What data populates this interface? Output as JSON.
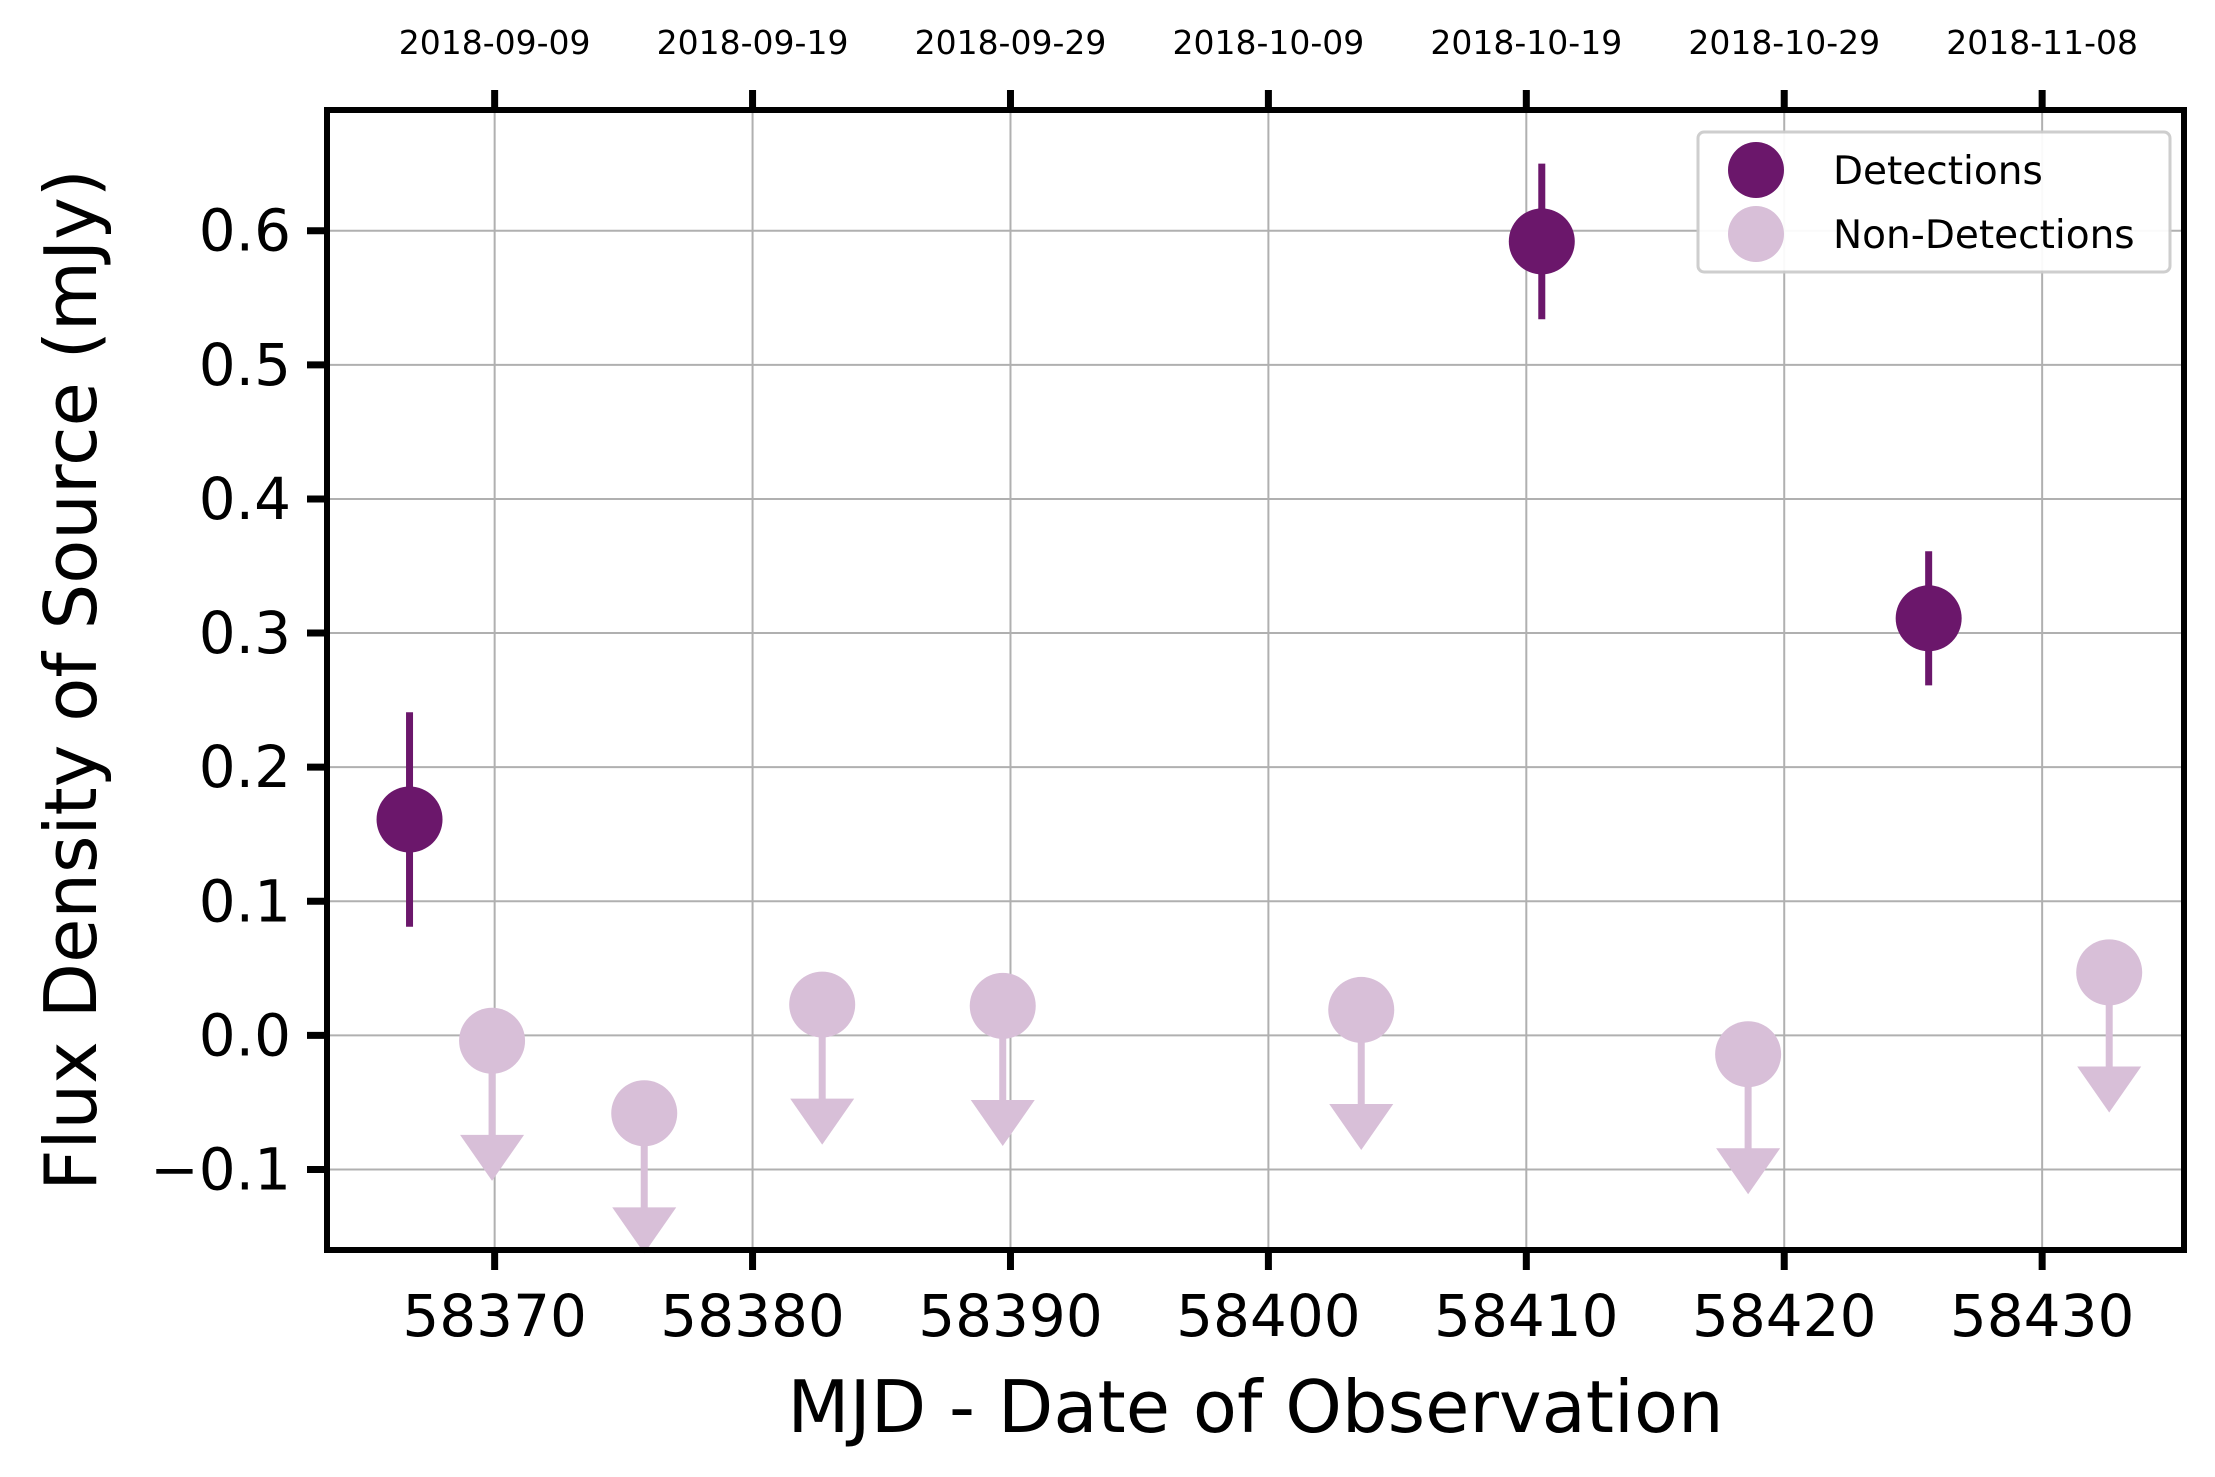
{
  "chart_data": {
    "type": "scatter",
    "xlabel": "MJD - Date of Observation",
    "ylabel": "Flux Density of Source (mJy)",
    "xlim": [
      58363.5,
      58435.5
    ],
    "ylim": [
      -0.16,
      0.69
    ],
    "x_ticks": [
      58370,
      58380,
      58390,
      58400,
      58410,
      58420,
      58430
    ],
    "x_tick_labels": [
      "58370",
      "58380",
      "58390",
      "58400",
      "58410",
      "58420",
      "58430"
    ],
    "y_ticks": [
      -0.1,
      0.0,
      0.1,
      0.2,
      0.3,
      0.4,
      0.5,
      0.6
    ],
    "y_tick_labels": [
      "−0.1",
      "0.0",
      "0.1",
      "0.2",
      "0.3",
      "0.4",
      "0.5",
      "0.6"
    ],
    "top_axis": {
      "ticks": [
        58370,
        58380,
        58390,
        58400,
        58410,
        58420,
        58430
      ],
      "labels": [
        "2018-09-09",
        "2018-09-19",
        "2018-09-29",
        "2018-10-09",
        "2018-10-19",
        "2018-10-29",
        "2018-11-08"
      ]
    },
    "grid": true,
    "legend_position": "top-right",
    "series": [
      {
        "name": "Detections",
        "color": "#6b176b",
        "points": [
          {
            "x": 58366.7,
            "y": 0.161,
            "yerr": 0.08
          },
          {
            "x": 58410.6,
            "y": 0.592,
            "yerr": 0.058
          },
          {
            "x": 58425.6,
            "y": 0.311,
            "yerr": 0.05
          }
        ]
      },
      {
        "name": "Non-Detections",
        "color": "#d8bfd8",
        "upper_limits": true,
        "points": [
          {
            "x": 58369.9,
            "y": -0.004
          },
          {
            "x": 58375.8,
            "y": -0.058
          },
          {
            "x": 58382.7,
            "y": 0.023
          },
          {
            "x": 58389.7,
            "y": 0.022
          },
          {
            "x": 58403.6,
            "y": 0.019
          },
          {
            "x": 58418.6,
            "y": -0.014
          },
          {
            "x": 58432.6,
            "y": 0.047
          }
        ]
      }
    ]
  }
}
